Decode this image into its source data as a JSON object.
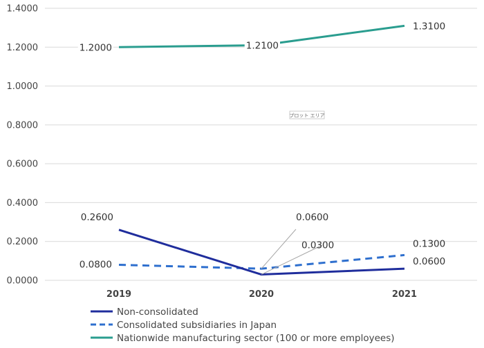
{
  "chart_data": {
    "type": "line",
    "categories": [
      "2019",
      "2020",
      "2021"
    ],
    "ylim": [
      0,
      1.4
    ],
    "yticks": [
      "0.0000",
      "0.2000",
      "0.4000",
      "0.6000",
      "0.8000",
      "1.0000",
      "1.2000",
      "1.4000"
    ],
    "grid": true,
    "legend_position": "bottom-left",
    "plot_area_tag": "プロット エリア",
    "series": [
      {
        "name": "Non-consolidated",
        "values": [
          0.26,
          0.03,
          0.06
        ],
        "labels": [
          "0.2600",
          "0.0300",
          "0.0600"
        ],
        "color": "#1f2d9c",
        "dash": "solid"
      },
      {
        "name": "Consolidated subsidiaries in Japan",
        "values": [
          0.08,
          0.06,
          0.13
        ],
        "labels": [
          "0.0800",
          "0.0600",
          "0.1300"
        ],
        "color": "#2e6fce",
        "dash": "dashed"
      },
      {
        "name": "Nationwide manufacturing sector (100 or more employees)",
        "values": [
          1.2,
          1.21,
          1.31
        ],
        "labels": [
          "1.2000",
          "1.2100",
          "1.3100"
        ],
        "color": "#2a9d8f",
        "dash": "solid"
      }
    ]
  }
}
